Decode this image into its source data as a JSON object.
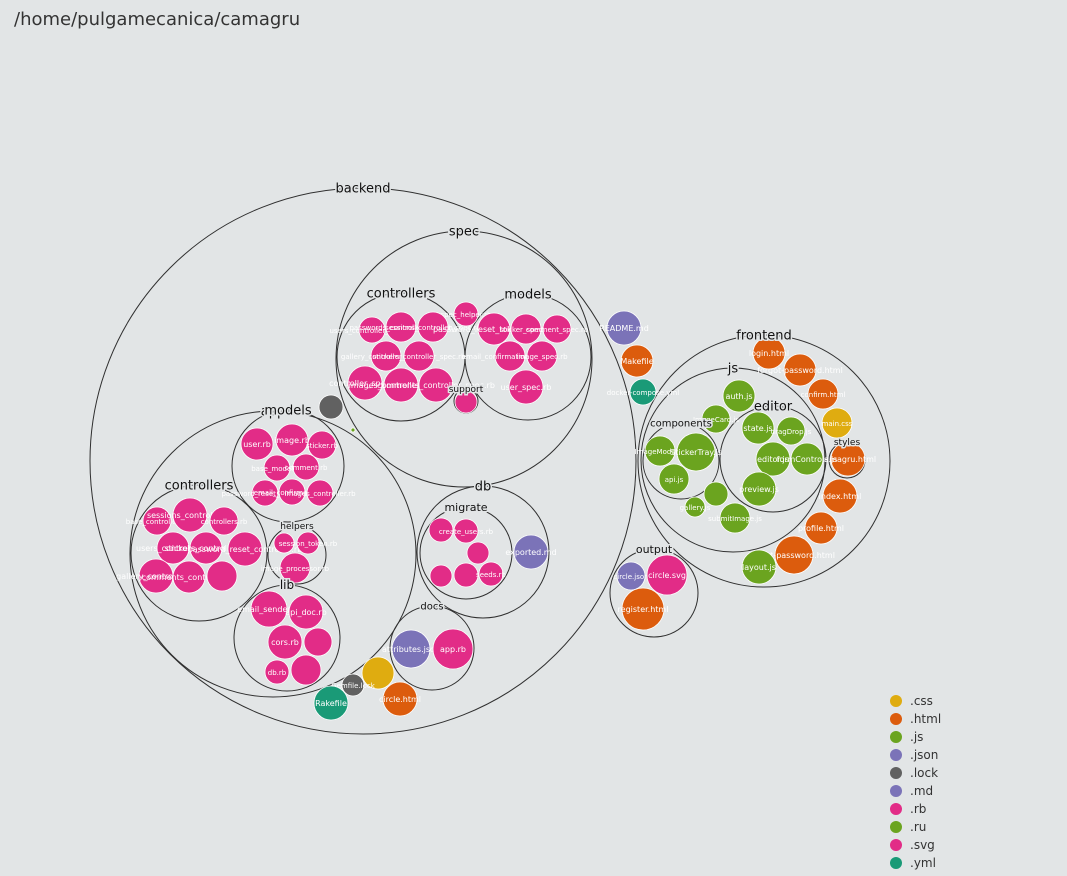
{
  "title": "/home/pulgamecanica/camagru",
  "legend": [
    {
      "ext": ".css",
      "color": "#dfac10"
    },
    {
      "ext": ".html",
      "color": "#dc5c0d"
    },
    {
      "ext": ".js",
      "color": "#6ba41f"
    },
    {
      "ext": ".json",
      "color": "#7b73b8"
    },
    {
      "ext": ".lock",
      "color": "#616161"
    },
    {
      "ext": ".md",
      "color": "#7b73b8"
    },
    {
      "ext": ".rb",
      "color": "#e22c87"
    },
    {
      "ext": ".ru",
      "color": "#6ba41f"
    },
    {
      "ext": ".svg",
      "color": "#e22c87"
    },
    {
      "ext": ".yml",
      "color": "#1a9a77"
    }
  ],
  "folders": [
    {
      "id": "backend",
      "label": "backend"
    },
    {
      "id": "frontend",
      "label": "frontend"
    },
    {
      "id": "output",
      "label": "output"
    },
    {
      "id": "spec",
      "label": "spec"
    },
    {
      "id": "spec-controllers",
      "label": "controllers"
    },
    {
      "id": "spec-models",
      "label": "models"
    },
    {
      "id": "support",
      "label": "support"
    },
    {
      "id": "app",
      "label": "app"
    },
    {
      "id": "app-models",
      "label": "models"
    },
    {
      "id": "app-controllers",
      "label": "controllers"
    },
    {
      "id": "helpers",
      "label": "helpers"
    },
    {
      "id": "lib",
      "label": "lib"
    },
    {
      "id": "db",
      "label": "db"
    },
    {
      "id": "migrate",
      "label": "migrate"
    },
    {
      "id": "docs",
      "label": "docs"
    },
    {
      "id": "js",
      "label": "js"
    },
    {
      "id": "components",
      "label": "components"
    },
    {
      "id": "editor",
      "label": "editor"
    },
    {
      "id": "styles",
      "label": "styles"
    }
  ],
  "files": [
    {
      "label": "README.md",
      "type": ".md"
    },
    {
      "label": "Makefile",
      "type": ".html"
    },
    {
      "label": "docker-compose.yml",
      "type": ".yml"
    },
    {
      "label": "",
      "type": ".lock"
    },
    {
      "label": "",
      "type": ".ru"
    },
    {
      "label": "spec_helper.rb",
      "type": ".rb"
    },
    {
      "label": "users_controller_spec.rb",
      "type": ".rb"
    },
    {
      "label": "passwords_controller_spec.rb",
      "type": ".rb"
    },
    {
      "label": "sessions_controller_spec.rb",
      "type": ".rb"
    },
    {
      "label": "gallery_controller_spec.rb",
      "type": ".rb"
    },
    {
      "label": "stickers_controller_spec.rb",
      "type": ".rb"
    },
    {
      "label": "controller_spec.rb",
      "type": ".rb"
    },
    {
      "label": "images_controller_spec.rb",
      "type": ".rb"
    },
    {
      "label": "comments_controller_spec.rb",
      "type": ".rb"
    },
    {
      "label": "password_reset_token_spec.rb",
      "type": ".rb"
    },
    {
      "label": "sticker_spec.rb",
      "type": ".rb"
    },
    {
      "label": "comment_spec.rb",
      "type": ".rb"
    },
    {
      "label": "email_confirmation_spec.rb",
      "type": ".rb"
    },
    {
      "label": "image_spec.rb",
      "type": ".rb"
    },
    {
      "label": "user_spec.rb",
      "type": ".rb"
    },
    {
      "label": "",
      "type": ".rb"
    },
    {
      "label": "user.rb",
      "type": ".rb"
    },
    {
      "label": "image.rb",
      "type": ".rb"
    },
    {
      "label": "sticker.rb",
      "type": ".rb"
    },
    {
      "label": "base_model.rb",
      "type": ".rb"
    },
    {
      "label": "comment.rb",
      "type": ".rb"
    },
    {
      "label": "password_reset_token.rb",
      "type": ".rb"
    },
    {
      "label": "email_confirmation.rb",
      "type": ".rb"
    },
    {
      "label": "images_controller.rb",
      "type": ".rb"
    },
    {
      "label": "base_controller.rb",
      "type": ".rb"
    },
    {
      "label": "sessions_controller.rb",
      "type": ".rb"
    },
    {
      "label": "controllers.rb",
      "type": ".rb"
    },
    {
      "label": "users_controller.rb",
      "type": ".rb"
    },
    {
      "label": "stickers_controller.rb",
      "type": ".rb"
    },
    {
      "label": "password_reset_controller.rb",
      "type": ".rb"
    },
    {
      "label": "gallery_controller.rb",
      "type": ".rb"
    },
    {
      "label": "comments_controller.rb",
      "type": ".rb"
    },
    {
      "label": "",
      "type": ".rb"
    },
    {
      "label": "",
      "type": ".rb"
    },
    {
      "label": "session_token.rb",
      "type": ".rb"
    },
    {
      "label": "image_processor.rb",
      "type": ".rb"
    },
    {
      "label": "email_sender.rb",
      "type": ".rb"
    },
    {
      "label": "api_doc.rb",
      "type": ".rb"
    },
    {
      "label": "cors.rb",
      "type": ".rb"
    },
    {
      "label": "",
      "type": ".rb"
    },
    {
      "label": "db.rb",
      "type": ".rb"
    },
    {
      "label": "",
      "type": ".rb"
    },
    {
      "label": "",
      "type": ".rb"
    },
    {
      "label": "create_users.rb",
      "type": ".rb"
    },
    {
      "label": "",
      "type": ".rb"
    },
    {
      "label": "",
      "type": ".rb"
    },
    {
      "label": "",
      "type": ".rb"
    },
    {
      "label": "seeds.rb",
      "type": ".rb"
    },
    {
      "label": "exported.md",
      "type": ".json"
    },
    {
      "label": "attributes.json",
      "type": ".json"
    },
    {
      "label": "app.rb",
      "type": ".rb"
    },
    {
      "label": "",
      "type": ".css"
    },
    {
      "label": "Gemfile.lock",
      "type": ".lock"
    },
    {
      "label": "Rakefile",
      "type": ".yml"
    },
    {
      "label": "circle.html",
      "type": ".html"
    },
    {
      "label": "circle.json",
      "type": ".json"
    },
    {
      "label": "circle.svg",
      "type": ".svg"
    },
    {
      "label": "register.html",
      "type": ".html"
    },
    {
      "label": "login.html",
      "type": ".html"
    },
    {
      "label": "forgot-password.html",
      "type": ".html"
    },
    {
      "label": "confirm.html",
      "type": ".html"
    },
    {
      "label": "main.css",
      "type": ".css"
    },
    {
      "label": "camagru.html",
      "type": ".html"
    },
    {
      "label": "index.html",
      "type": ".html"
    },
    {
      "label": "profile.html",
      "type": ".html"
    },
    {
      "label": "reset-password.html",
      "type": ".html"
    },
    {
      "label": "layout.js",
      "type": ".js"
    },
    {
      "label": "auth.js",
      "type": ".js"
    },
    {
      "label": "ImageCard.js",
      "type": ".js"
    },
    {
      "label": "ImageModal.js",
      "type": ".js"
    },
    {
      "label": "StickerTray.js",
      "type": ".js"
    },
    {
      "label": "api.js",
      "type": ".js"
    },
    {
      "label": "",
      "type": ".js"
    },
    {
      "label": "gallery.js",
      "type": ".js"
    },
    {
      "label": "submitImage.js",
      "type": ".js"
    },
    {
      "label": "state.js",
      "type": ".js"
    },
    {
      "label": "dragDrop.js",
      "type": ".js"
    },
    {
      "label": "editor.js",
      "type": ".js"
    },
    {
      "label": "formControls.js",
      "type": ".js"
    },
    {
      "label": "preview.js",
      "type": ".js"
    }
  ]
}
